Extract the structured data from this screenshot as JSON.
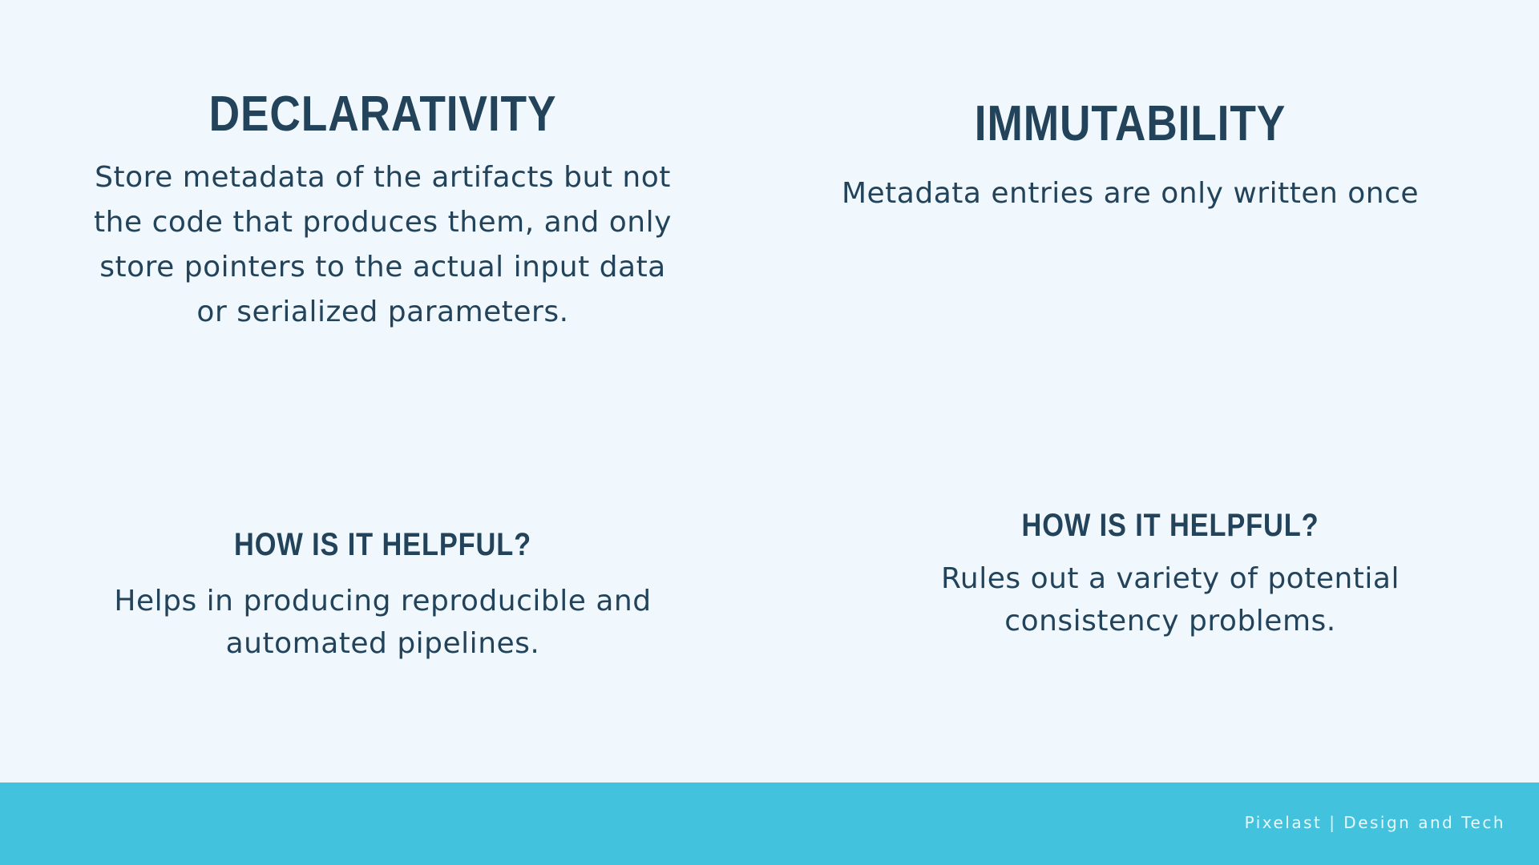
{
  "declarativity": {
    "title": "DECLARATIVITY",
    "body": "Store metadata of the artifacts but not the code that produces them, and only store pointers to the actual input data or serialized parameters."
  },
  "immutability": {
    "title": "IMMUTABILITY",
    "body": "Metadata entries are only written once"
  },
  "helpful_left": {
    "title": "HOW IS IT HELPFUL?",
    "body": "Helps in producing reproducible and automated pipelines."
  },
  "helpful_right": {
    "title": "HOW IS IT HELPFUL?",
    "body": "Rules out a variety of potential consistency problems."
  },
  "footer": {
    "credit": "Pixelast | Design and Tech"
  },
  "colors": {
    "background": "#f0f8fe",
    "text": "#22435a",
    "footer_bar": "#43c2dd"
  }
}
